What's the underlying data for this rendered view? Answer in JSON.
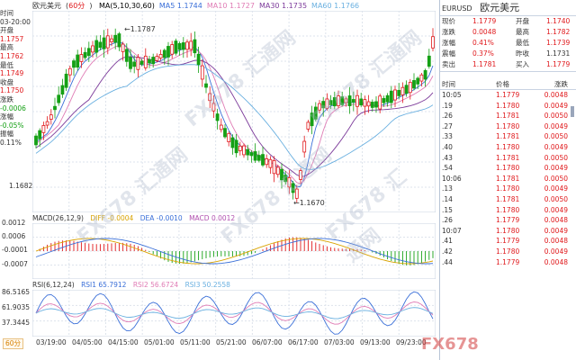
{
  "header": {
    "symbol_cn": "欧元美元",
    "period": "60分",
    "ma_legend": [
      {
        "label": "MA(5,10,30,60)",
        "color": "#000000"
      },
      {
        "label": "MA5 1.1744",
        "color": "#3a6fd8"
      },
      {
        "label": "MA10 1.1727",
        "color": "#e07cb5"
      },
      {
        "label": "MA30 1.1735",
        "color": "#7c3a9a"
      },
      {
        "label": "MA60 1.1766",
        "color": "#6ab0e0"
      }
    ]
  },
  "info": {
    "time_label": "时间",
    "time_value": "03-20:00",
    "open_label": "开盘",
    "open_value": "1.1757",
    "high_label": "最高",
    "high_value": "1.1762",
    "low_label": "最低",
    "low_value": "1.1749",
    "close_label": "收盘",
    "close_value": "1.1750",
    "change_label": "涨跌",
    "change_value": "-0.0006",
    "pct_label": "涨幅",
    "pct_value": "-0.05%",
    "amp_label": "振幅",
    "amp_value": "0.11%"
  },
  "main_chart": {
    "high_marker": "←1.1787",
    "low_marker": "←1.1670",
    "y_label": "1.1682"
  },
  "macd": {
    "legend": "MACD(26,12,9)",
    "diff": "DIFF -0.0004",
    "dea": "DEA -0.0010",
    "macd": "MACD 0.0012",
    "y_labels": [
      "0.0012",
      "0.0006",
      "-0.0001",
      "-0.0007"
    ]
  },
  "rsi": {
    "legend": "RSI(6,12,24)",
    "rsi1": "RSI1 65.7912",
    "rsi2": "RSI2 56.6724",
    "rsi3": "RSI3 50.2558",
    "y_labels": [
      "86.5165",
      "61.9035",
      "37.3445"
    ]
  },
  "x_axis": {
    "period_button": "60分",
    "dates": [
      "03/19:00",
      "04/05:00",
      "04/15:00",
      "05/01:00",
      "05/11:00",
      "05/21:00",
      "06/07:00",
      "06/17:00",
      "07/03:00",
      "09/13:00",
      "09/23:00"
    ]
  },
  "side": {
    "code": "EURUSD",
    "name": "欧元美元",
    "quotes": [
      {
        "l1": "现价",
        "v1": "1.1779",
        "c1": "red",
        "l2": "开盘",
        "v2": "1.1740",
        "c2": "red"
      },
      {
        "l1": "涨跌",
        "v1": "0.0048",
        "c1": "red",
        "l2": "最高",
        "v2": "1.1782",
        "c2": "red"
      },
      {
        "l1": "涨幅",
        "v1": "0.41%",
        "c1": "red",
        "l2": "最低",
        "v2": "1.1739",
        "c2": "red"
      },
      {
        "l1": "震幅",
        "v1": "0.37%",
        "c1": "red",
        "l2": "昨收",
        "v2": "1.1731",
        "c2": "black"
      },
      {
        "l1": "卖出",
        "v1": "1.1781",
        "c1": "red",
        "l2": "买入",
        "v2": "1.1779",
        "c2": "red"
      }
    ],
    "ticks_header": {
      "time": "时间",
      "price": "价格",
      "change": "涨跌"
    },
    "ticks": [
      {
        "time": "10:05",
        "price": "1.1779",
        "change": "0.0048"
      },
      {
        "time": ".19",
        "price": "1.1780",
        "change": "0.0049"
      },
      {
        "time": ".26",
        "price": "1.1781",
        "change": "0.0050"
      },
      {
        "time": ".27",
        "price": "1.1780",
        "change": "0.0049"
      },
      {
        "time": ".33",
        "price": "1.1781",
        "change": "0.0050"
      },
      {
        "time": ".40",
        "price": "1.1780",
        "change": "0.0049"
      },
      {
        "time": ".43",
        "price": "1.1781",
        "change": "0.0050"
      },
      {
        "time": ".54",
        "price": "1.1780",
        "change": "0.0049"
      },
      {
        "time": "10:06",
        "price": "1.1781",
        "change": "0.0050"
      },
      {
        "time": ".13",
        "price": "1.1780",
        "change": "0.0049"
      },
      {
        "time": ".14",
        "price": "1.1781",
        "change": "0.0050"
      },
      {
        "time": ".15",
        "price": "1.1780",
        "change": "0.0049"
      },
      {
        "time": ".26",
        "price": "1.1779",
        "change": "0.0048"
      },
      {
        "time": "10:07",
        "price": "1.1780",
        "change": "0.0049"
      },
      {
        "time": ".41",
        "price": "1.1779",
        "change": "0.0048"
      },
      {
        "time": ".42",
        "price": "1.1780",
        "change": "0.0049"
      },
      {
        "time": ".44",
        "price": "1.1779",
        "change": "0.0048"
      }
    ]
  },
  "colors": {
    "up": "#e0191c",
    "down": "#15a015",
    "grid": "#c9d3e2"
  }
}
